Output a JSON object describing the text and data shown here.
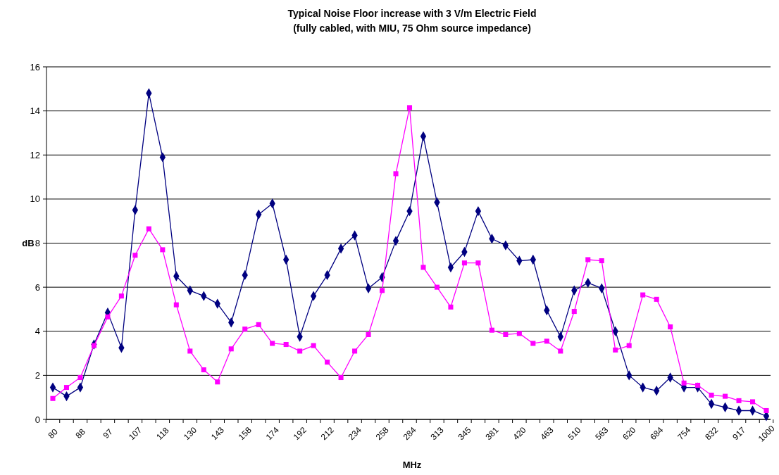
{
  "chart_data": {
    "type": "line",
    "title": "Typical Noise Floor increase with 3 V/m Electric Field",
    "subtitle": "(fully cabled, with MIU, 75 Ohm source impedance)",
    "xlabel": "MHz",
    "ylabel": "dB",
    "categories": [
      "80",
      null,
      "88",
      null,
      "97",
      null,
      "107",
      null,
      "118",
      null,
      "130",
      null,
      "143",
      null,
      "158",
      null,
      "174",
      null,
      "192",
      null,
      "212",
      null,
      "234",
      null,
      "258",
      null,
      "284",
      null,
      "313",
      null,
      "345",
      null,
      "381",
      null,
      "420",
      null,
      "463",
      null,
      "510",
      null,
      "563",
      null,
      "620",
      null,
      "684",
      null,
      "754",
      null,
      "832",
      null,
      "917",
      null,
      "1000"
    ],
    "series": [
      {
        "color": "#000080",
        "marker": "diamond",
        "values": [
          1.45,
          1.05,
          1.45,
          3.4,
          4.85,
          3.25,
          9.5,
          14.8,
          11.9,
          6.5,
          5.85,
          5.6,
          5.25,
          4.4,
          6.55,
          9.3,
          9.8,
          7.25,
          3.75,
          5.6,
          6.55,
          7.75,
          8.35,
          5.95,
          6.45,
          8.1,
          9.45,
          12.85,
          9.85,
          6.9,
          7.6,
          9.45,
          8.2,
          7.9,
          7.2,
          7.25,
          4.95,
          3.75,
          5.85,
          6.2,
          5.95,
          4.0,
          2.0,
          1.45,
          1.3,
          1.9,
          1.45,
          1.45,
          0.7,
          0.55,
          0.4,
          0.4,
          0.15
        ]
      },
      {
        "color": "#ff00ff",
        "marker": "square",
        "values": [
          0.95,
          1.45,
          1.9,
          3.35,
          4.65,
          5.6,
          7.45,
          8.65,
          7.7,
          5.2,
          3.1,
          2.25,
          1.7,
          3.2,
          4.1,
          4.3,
          3.45,
          3.4,
          3.1,
          3.35,
          2.6,
          1.9,
          3.1,
          3.85,
          5.85,
          11.15,
          14.15,
          6.9,
          6.0,
          5.1,
          7.1,
          7.1,
          4.05,
          3.85,
          3.9,
          3.45,
          3.55,
          3.1,
          4.9,
          7.25,
          7.2,
          3.15,
          3.35,
          5.65,
          5.45,
          4.2,
          1.65,
          1.55,
          1.1,
          1.05,
          0.85,
          0.8,
          0.4
        ]
      }
    ],
    "ylim": [
      0,
      16
    ],
    "yticks": [
      0,
      2,
      4,
      6,
      8,
      10,
      12,
      14,
      16
    ],
    "grid": "y"
  }
}
